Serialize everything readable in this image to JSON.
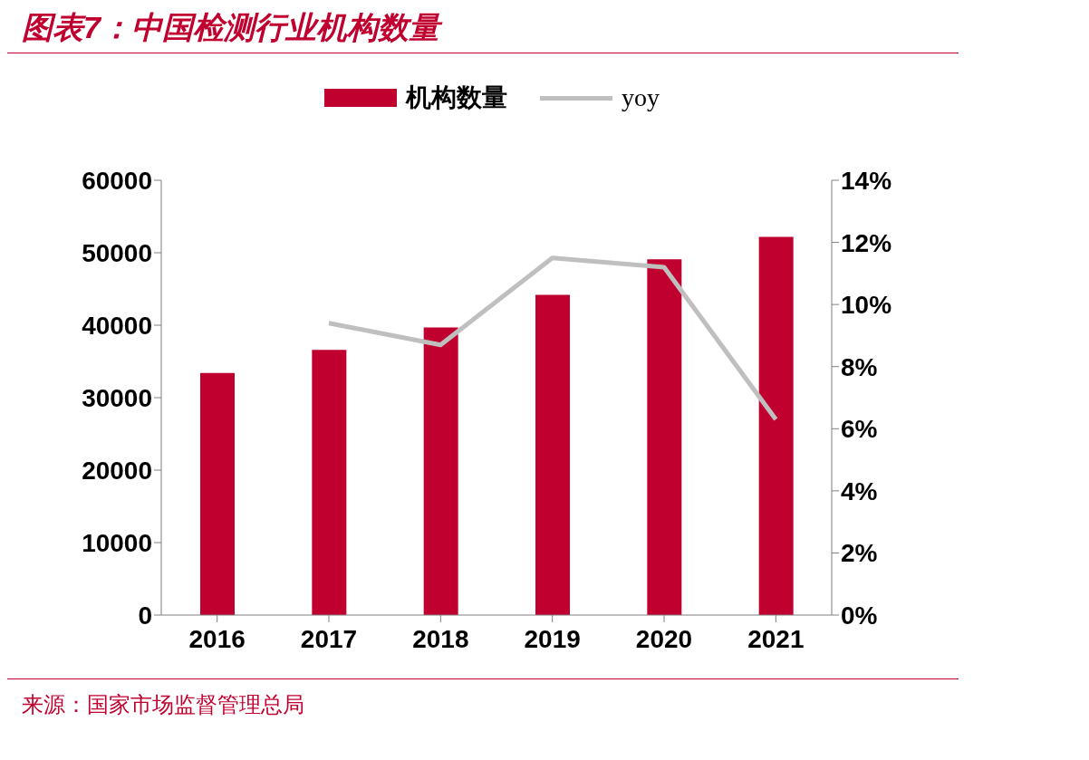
{
  "chart_data": {
    "type": "bar",
    "title": "图表7：中国检测行业机构数量",
    "categories": [
      "2016",
      "2017",
      "2018",
      "2019",
      "2020",
      "2021"
    ],
    "series": [
      {
        "name": "机构数量",
        "color": "#c0002f",
        "values": [
          33400,
          36600,
          39700,
          44200,
          49100,
          52200
        ]
      },
      {
        "name": "yoy",
        "type": "line",
        "axis": "y2",
        "color": "#bfbfbf",
        "values": [
          null,
          9.4,
          8.7,
          11.5,
          11.2,
          6.3
        ]
      }
    ],
    "ylim": [
      0,
      60000
    ],
    "yticks": [
      0,
      10000,
      20000,
      30000,
      40000,
      50000,
      60000
    ],
    "y2lim": [
      0,
      14
    ],
    "y2ticks": [
      {
        "value": 0,
        "label": "0%"
      },
      {
        "value": 2,
        "label": "2%"
      },
      {
        "value": 4,
        "label": "4%"
      },
      {
        "value": 6,
        "label": "6%"
      },
      {
        "value": 8,
        "label": "8%"
      },
      {
        "value": 10,
        "label": "10%"
      },
      {
        "value": 12,
        "label": "12%"
      },
      {
        "value": 14,
        "label": "14%"
      }
    ],
    "grid": false,
    "legend": "top",
    "marker": "none",
    "line_style": "solid",
    "annotations": [
      "来源：国家市场监督管理总局"
    ]
  }
}
